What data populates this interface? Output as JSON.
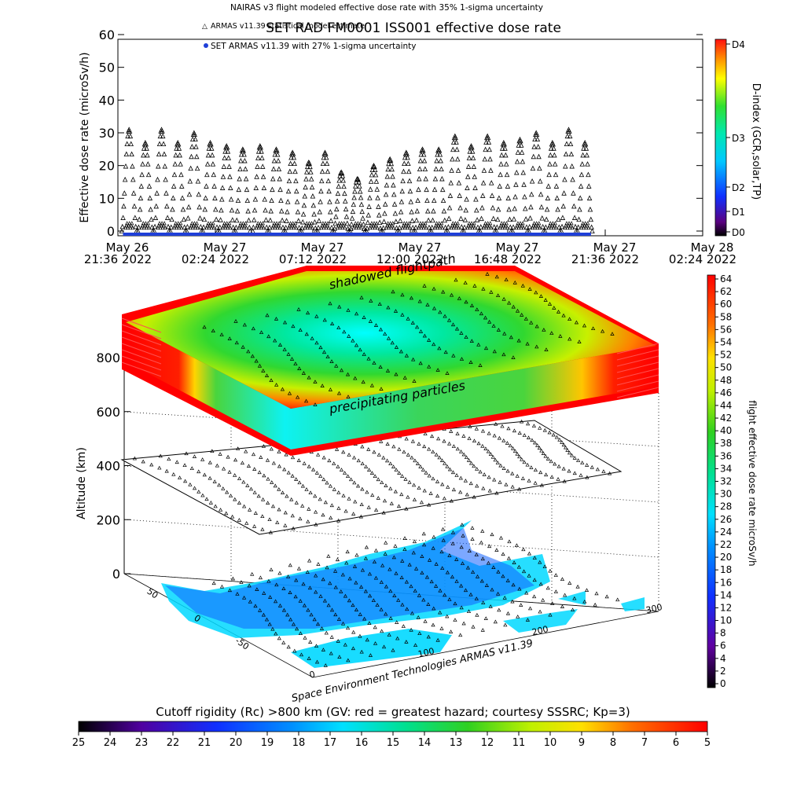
{
  "header": {
    "subtitle": "NAIRAS v3 flight modeled effective dose rate with 35% 1-sigma uncertainty",
    "title": "SET RAD FM0001 ISS001 effective dose rate",
    "legend_model": "ARMAS v11.39 statistical model estimate",
    "legend_set": "SET ARMAS v11.39 with 27% 1-sigma uncertainty"
  },
  "colors": {
    "axis": "#000000",
    "marker": "#000000",
    "set_series": "#1f3fd8",
    "hot": "#ff0000",
    "cool": "#00ffff"
  },
  "chart_data": [
    {
      "type": "scatter",
      "ylabel": "Effective dose rate (microSv/h)",
      "ylim": [
        0,
        60
      ],
      "yticks": [
        0,
        10,
        20,
        30,
        40,
        50,
        60
      ],
      "xticks": [
        {
          "l1": "May 26",
          "l2": "21:36 2022"
        },
        {
          "l1": "May 27",
          "l2": "02:24 2022"
        },
        {
          "l1": "May 27",
          "l2": "07:12 2022"
        },
        {
          "l1": "May 27",
          "l2": "12:00 2022"
        },
        {
          "l1": "May 27",
          "l2": "16:48 2022"
        },
        {
          "l1": "May 27",
          "l2": "21:36 2022"
        },
        {
          "l1": "May 28",
          "l2": "02:24 2022"
        }
      ],
      "xlim_hours": [
        0,
        28.8
      ],
      "orbit_peaks": [
        {
          "t": 0.55,
          "v": 31
        },
        {
          "t": 1.35,
          "v": 27
        },
        {
          "t": 2.15,
          "v": 31
        },
        {
          "t": 2.95,
          "v": 27
        },
        {
          "t": 3.75,
          "v": 30
        },
        {
          "t": 4.55,
          "v": 27
        },
        {
          "t": 5.35,
          "v": 26
        },
        {
          "t": 6.15,
          "v": 25
        },
        {
          "t": 7.0,
          "v": 26
        },
        {
          "t": 7.8,
          "v": 25
        },
        {
          "t": 8.6,
          "v": 24
        },
        {
          "t": 9.4,
          "v": 21
        },
        {
          "t": 10.2,
          "v": 24
        },
        {
          "t": 11.0,
          "v": 18
        },
        {
          "t": 11.8,
          "v": 16
        },
        {
          "t": 12.6,
          "v": 20
        },
        {
          "t": 13.4,
          "v": 22
        },
        {
          "t": 14.2,
          "v": 24
        },
        {
          "t": 15.0,
          "v": 25
        },
        {
          "t": 15.8,
          "v": 25
        },
        {
          "t": 16.6,
          "v": 29
        },
        {
          "t": 17.4,
          "v": 26
        },
        {
          "t": 18.2,
          "v": 29
        },
        {
          "t": 19.0,
          "v": 27
        },
        {
          "t": 19.8,
          "v": 28
        },
        {
          "t": 20.6,
          "v": 30
        },
        {
          "t": 21.4,
          "v": 27
        },
        {
          "t": 22.2,
          "v": 31
        },
        {
          "t": 23.0,
          "v": 27
        }
      ],
      "set_range_hours": [
        0.25,
        23.3
      ],
      "set_value": 0
    },
    {
      "type": "scatter3d",
      "zlabel": "Altitude (km)",
      "zticks": [
        0,
        200,
        400,
        600,
        800
      ],
      "lat_ticks": [
        50,
        0,
        -50
      ],
      "lon_ticks": [
        0,
        100,
        200,
        300
      ],
      "labels": {
        "shadowed": "shadowed flightpath",
        "precip": "precipitating particles",
        "credit": "Space Environment Technologies ARMAS v11.39"
      }
    }
  ],
  "colorbars": {
    "dindex": {
      "label": "D-index (GCR,solar,TP)",
      "ticks": [
        "D4",
        "D3",
        "D2",
        "D1",
        "D0"
      ]
    },
    "dose": {
      "label": "flight effective dose rate microSv/h",
      "ticks": [
        64,
        62,
        60,
        58,
        56,
        54,
        52,
        50,
        48,
        46,
        44,
        42,
        40,
        38,
        36,
        34,
        32,
        30,
        28,
        26,
        24,
        22,
        20,
        18,
        16,
        14,
        12,
        10,
        8,
        6,
        4,
        2,
        0
      ]
    },
    "cutoff": {
      "label": "Cutoff rigidity (Rc) >800 km (GV: red = greatest hazard; courtesy SSSRC; Kp=3)",
      "ticks": [
        25,
        24,
        23,
        22,
        21,
        20,
        19,
        18,
        17,
        16,
        15,
        14,
        13,
        12,
        11,
        10,
        9,
        8,
        7,
        6,
        5
      ]
    }
  }
}
